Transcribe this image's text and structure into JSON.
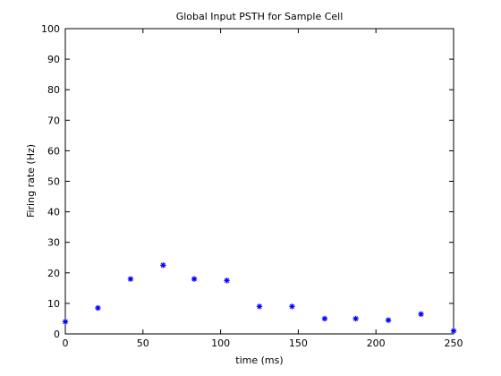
{
  "chart_data": {
    "type": "scatter",
    "title": "Global Input PSTH for Sample Cell",
    "xlabel": "time (ms)",
    "ylabel": "Firing rate (Hz)",
    "xlim": [
      0,
      250
    ],
    "ylim": [
      0,
      100
    ],
    "xticks": [
      0,
      50,
      100,
      150,
      200,
      250
    ],
    "yticks": [
      0,
      10,
      20,
      30,
      40,
      50,
      60,
      70,
      80,
      90,
      100
    ],
    "grid": false,
    "marker": "asterisk",
    "series": [
      {
        "color": "#0000ff",
        "x": [
          0,
          21,
          42,
          63,
          83,
          104,
          125,
          146,
          167,
          187,
          208,
          229,
          250
        ],
        "y": [
          4,
          8.5,
          18,
          22.5,
          18,
          17.5,
          9,
          9,
          5,
          5,
          4.5,
          6.5,
          1
        ]
      }
    ]
  }
}
